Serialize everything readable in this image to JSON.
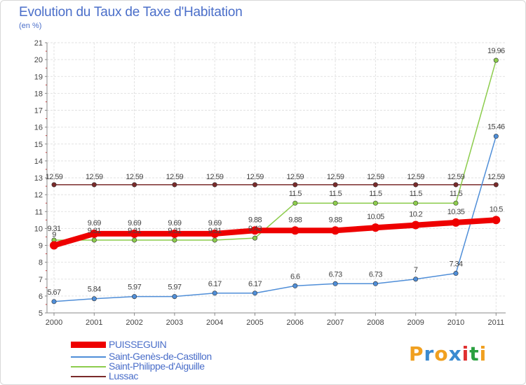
{
  "header": {
    "title": "Evolution du Taux de Taxe d'Habitation",
    "unit": "(en %)"
  },
  "brand": {
    "letters": [
      "P",
      "r",
      "o",
      "x",
      "i",
      "t",
      "i"
    ],
    "colors": [
      "#f0a020",
      "#3a8ad0",
      "#f0a020",
      "#3a8ad0",
      "#e03030",
      "#2aa040",
      "#f0a020"
    ]
  },
  "chart_data": {
    "type": "line",
    "title": "Evolution du Taux de Taxe d'Habitation",
    "ylabel": "(en %)",
    "xlabel": "",
    "x": [
      "2000",
      "2001",
      "2002",
      "2003",
      "2004",
      "2005",
      "2006",
      "2007",
      "2008",
      "2009",
      "2010",
      "2011"
    ],
    "ylim": [
      5,
      21
    ],
    "yticks": [
      "5",
      "6",
      "7",
      "8",
      "9",
      "10",
      "11",
      "12",
      "13",
      "14",
      "15",
      "16",
      "17",
      "18",
      "19",
      "20",
      "21"
    ],
    "grid": true,
    "legend_position": "bottom-left",
    "series": [
      {
        "name": "Lussac",
        "color": "#7a2a2a",
        "values": [
          12.59,
          12.59,
          12.59,
          12.59,
          12.59,
          12.59,
          12.59,
          12.59,
          12.59,
          12.59,
          12.59,
          12.59
        ],
        "labels": [
          "12.59",
          "12.59",
          "12.59",
          "12.59",
          "12.59",
          "12.59",
          "12.59",
          "12.59",
          "12.59",
          "12.59",
          "12.59",
          "12.59"
        ]
      },
      {
        "name": "Saint-Philippe-d'Aiguille",
        "color": "#8ccc4c",
        "values": [
          9.31,
          9.31,
          9.31,
          9.31,
          9.31,
          9.43,
          11.5,
          11.5,
          11.5,
          11.5,
          11.5,
          19.96
        ],
        "labels": [
          "9.31",
          "9.31",
          "9.31",
          "9.31",
          "9.31",
          "9.43",
          "11.5",
          "11.5",
          "11.5",
          "11.5",
          "11.5",
          "19.96"
        ]
      },
      {
        "name": "Saint-Genès-de-Castillon",
        "color": "#4f8ed8",
        "values": [
          5.67,
          5.84,
          5.97,
          5.97,
          6.17,
          6.17,
          6.6,
          6.73,
          6.73,
          7.0,
          7.34,
          15.46
        ],
        "labels": [
          "5.67",
          "5.84",
          "5.97",
          "5.97",
          "6.17",
          "6.17",
          "6.6",
          "6.73",
          "6.73",
          "7",
          "7.34",
          "15.46"
        ]
      },
      {
        "name": "PUISSEGUIN",
        "color": "#ee0000",
        "values": [
          9.0,
          9.69,
          9.69,
          9.69,
          9.69,
          9.88,
          9.88,
          9.88,
          10.05,
          10.2,
          10.35,
          10.5
        ],
        "labels": [
          "9",
          "9.69",
          "9.69",
          "9.69",
          "9.69",
          "9.88",
          "9.88",
          "9.88",
          "10.05",
          "10.2",
          "10.35",
          "10.5"
        ]
      }
    ]
  },
  "legend": {
    "items": [
      {
        "label": "PUISSEGUIN",
        "color": "#ee0000",
        "thick": true
      },
      {
        "label": "Saint-Genès-de-Castillon",
        "color": "#4f8ed8",
        "thick": false
      },
      {
        "label": "Saint-Philippe-d'Aiguille",
        "color": "#8ccc4c",
        "thick": false
      },
      {
        "label": "Lussac",
        "color": "#7a2a2a",
        "thick": false
      }
    ]
  }
}
